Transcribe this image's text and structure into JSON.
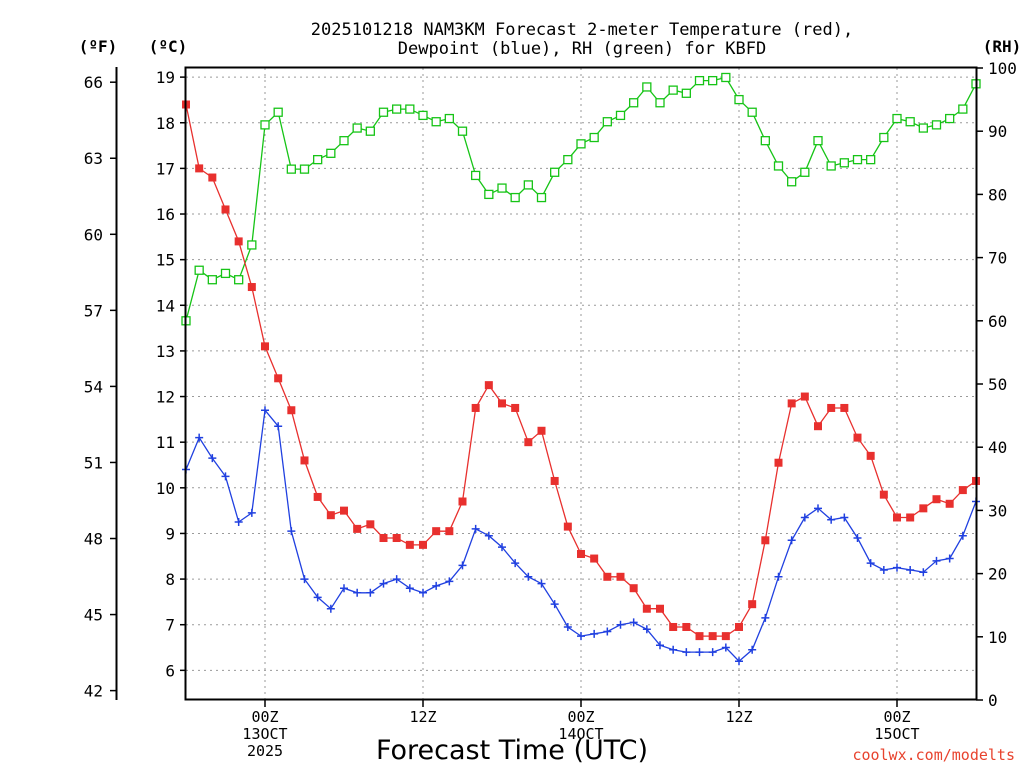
{
  "chart_data": {
    "type": "line",
    "title": [
      "2025101218 NAM3KM Forecast 2-meter Temperature (red),",
      "Dewpoint (blue), RH (green) for KBFD"
    ],
    "units": {
      "fahrenheit": "(ºF)",
      "celsius": "(ºC)",
      "rh": "(RH)"
    },
    "xlabel": "Forecast Time (UTC)",
    "credit": "coolwx.com/modelts",
    "x_range_hours": [
      0,
      60
    ],
    "y_left_c_range": [
      5.35,
      19.2
    ],
    "y_rh_range": [
      0,
      100
    ],
    "y_f_range": [
      41.63,
      66.56
    ],
    "x_ticks": [
      {
        "hour": 6,
        "lines": [
          "00Z",
          "13OCT",
          "2025"
        ]
      },
      {
        "hour": 18,
        "lines": [
          "12Z"
        ]
      },
      {
        "hour": 30,
        "lines": [
          "00Z",
          "14OCT"
        ]
      },
      {
        "hour": 42,
        "lines": [
          "12Z"
        ]
      },
      {
        "hour": 54,
        "lines": [
          "00Z",
          "15OCT"
        ]
      }
    ],
    "y_c_ticks": [
      6,
      7,
      8,
      9,
      10,
      11,
      12,
      13,
      14,
      15,
      16,
      17,
      18,
      19
    ],
    "y_f_ticks": [
      42,
      45,
      48,
      51,
      54,
      57,
      60,
      63,
      66
    ],
    "y_rh_ticks": [
      0,
      10,
      20,
      30,
      40,
      50,
      60,
      70,
      80,
      90,
      100
    ],
    "hours": [
      0,
      1,
      2,
      3,
      4,
      5,
      6,
      7,
      8,
      9,
      10,
      11,
      12,
      13,
      14,
      15,
      16,
      17,
      18,
      19,
      20,
      21,
      22,
      23,
      24,
      25,
      26,
      27,
      28,
      29,
      30,
      31,
      32,
      33,
      34,
      35,
      36,
      37,
      38,
      39,
      40,
      41,
      42,
      43,
      44,
      45,
      46,
      47,
      48,
      49,
      50,
      51,
      52,
      53,
      54,
      55,
      56,
      57,
      58,
      59,
      60
    ],
    "series": [
      {
        "name": "Temperature",
        "unit": "°C",
        "color": "#e8302e",
        "marker": "filled-square",
        "values": [
          18.4,
          17.0,
          16.8,
          16.1,
          15.4,
          14.4,
          13.1,
          12.4,
          11.7,
          10.6,
          9.8,
          9.4,
          9.5,
          9.1,
          9.2,
          8.9,
          8.9,
          8.75,
          8.75,
          9.05,
          9.05,
          9.7,
          11.75,
          12.25,
          11.85,
          11.75,
          11.0,
          11.25,
          10.15,
          9.15,
          8.55,
          8.45,
          8.05,
          8.05,
          7.8,
          7.35,
          7.35,
          6.95,
          6.95,
          6.75,
          6.75,
          6.75,
          6.95,
          7.45,
          8.85,
          10.55,
          11.85,
          12.0,
          11.35,
          11.75,
          11.75,
          11.1,
          10.7,
          9.85,
          9.35,
          9.35,
          9.55,
          9.75,
          9.65,
          9.95,
          10.15
        ]
      },
      {
        "name": "Dewpoint",
        "unit": "°C",
        "color": "#2040e0",
        "marker": "plus",
        "values": [
          10.4,
          11.1,
          10.65,
          10.25,
          9.25,
          9.45,
          11.7,
          11.35,
          9.05,
          8.0,
          7.6,
          7.35,
          7.8,
          7.7,
          7.7,
          7.9,
          8.0,
          7.8,
          7.7,
          7.85,
          7.95,
          8.3,
          9.1,
          8.95,
          8.7,
          8.35,
          8.05,
          7.9,
          7.45,
          6.95,
          6.75,
          6.8,
          6.85,
          7.0,
          7.05,
          6.9,
          6.55,
          6.45,
          6.4,
          6.4,
          6.4,
          6.5,
          6.2,
          6.45,
          7.15,
          8.05,
          8.85,
          9.35,
          9.55,
          9.3,
          9.35,
          8.9,
          8.35,
          8.2,
          8.25,
          8.2,
          8.15,
          8.4,
          8.45,
          8.95,
          9.7
        ]
      },
      {
        "name": "RH",
        "unit": "%",
        "color": "#16c416",
        "marker": "open-square",
        "values": [
          60,
          68,
          66.5,
          67.5,
          66.5,
          72,
          91,
          93,
          84,
          84,
          85.5,
          86.5,
          88.5,
          90.5,
          90,
          93,
          93.5,
          93.5,
          92.5,
          91.5,
          92,
          90,
          83,
          80,
          81,
          79.5,
          81.5,
          79.5,
          83.5,
          85.5,
          88,
          89,
          91.5,
          92.5,
          94.5,
          97,
          94.5,
          96.5,
          96,
          98,
          98,
          98.5,
          95,
          93,
          88.5,
          84.5,
          82,
          83.5,
          88.5,
          84.5,
          85,
          85.5,
          85.5,
          89,
          92,
          91.5,
          90.5,
          91,
          92,
          93.5,
          97.5
        ]
      }
    ]
  }
}
